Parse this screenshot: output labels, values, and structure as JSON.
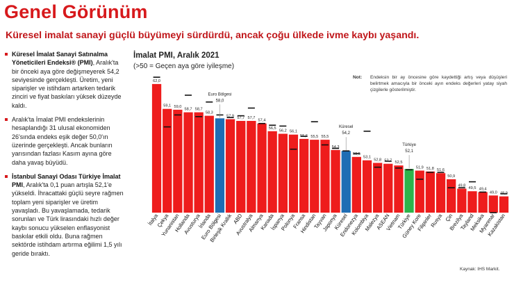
{
  "page": {
    "title": "Genel Görünüm",
    "subtitle": "Küresel imalat sanayi güçlü büyümeyi sürdürdü, ancak çoğu ülkede ivme kaybı yaşandı."
  },
  "bullets": [
    {
      "bold": "Küresel İmalat Sanayi Satınalma Yöneticileri Endeksi® (PMI)",
      "text": ", Aralık'ta bir önceki aya göre değişmeyerek 54,2 seviyesinde gerçekleşti. Üretim, yeni siparişler ve istihdam artarken tedarik zinciri ve fiyat baskıları yüksek düzeyde kaldı."
    },
    {
      "bold": "",
      "text": "Aralık'ta İmalat PMI endekslerinin hesaplandığı 31 ulusal ekonomiden 26'sında endeks eşik değer 50,0'ın üzerinde gerçekleşti. Ancak bunların yarısından fazlası Kasım ayına göre daha yavaş büyüdü."
    },
    {
      "bold": "İstanbul Sanayi Odası Türkiye İmalat PMI",
      "text": ", Aralık'ta 0,1 puan artışla 52,1'e yükseldi. İhracattaki güçlü seyre rağmen toplam yeni siparişler ve üretim yavaşladı. Bu yavaşlamada, tedarik sorunları ve Türk lirasındaki hızlı değer kaybı sonucu yükselen enflasyonist baskılar etkili oldu. Buna rağmen sektörde istihdam artırma eğilimi 1,5 yılı geride bıraktı."
    }
  ],
  "chart": {
    "title": "İmalat PMI, Aralık 2021",
    "subtitle": "(>50 = Geçen aya göre iyileşme)",
    "note_label": "Not:",
    "note_text": "Endeksin bir ay öncesine göre kaydettiği artış veya düşüşleri belirtmek amacıyla bir önceki ayın endeks değerleri yatay siyah çizgilerle gösterilmiştir.",
    "source": "Kaynak: IHS Markit."
  },
  "colors": {
    "default": "#ee1c1c",
    "eurozone": "#1f6db4",
    "global": "#1f6db4",
    "turkey": "#2db34a",
    "prev_marker": "#111111",
    "title": "#d7191c"
  },
  "chart_data": {
    "type": "bar",
    "categories": [
      "İtalya",
      "Çekya",
      "Yunanistan",
      "Hollanda",
      "Avusturya",
      "İrlanda",
      "Euro Bölgesi",
      "Birleşik Krallık",
      "ABD",
      "Avustralya",
      "Almanya",
      "Kanada",
      "İspanya",
      "Polonya",
      "Fransa",
      "Hindistan",
      "Tayvan",
      "Japonya",
      "Küresel",
      "Endonezya",
      "Kolombiya",
      "Malezya",
      "ASEAN",
      "Vietnam",
      "Türkiye",
      "Güney Kore",
      "Filipinler",
      "Rusya",
      "Çin",
      "Brezilya",
      "Tayland",
      "Meksika",
      "Myanmar",
      "Kazakistan"
    ],
    "values": [
      62.0,
      59.1,
      59.0,
      58.7,
      58.7,
      58.3,
      58.0,
      57.9,
      57.7,
      57.7,
      57.4,
      56.5,
      56.2,
      56.1,
      55.6,
      55.5,
      55.5,
      54.3,
      54.2,
      53.5,
      53.1,
      52.8,
      52.7,
      52.5,
      52.1,
      51.9,
      51.8,
      51.6,
      50.9,
      49.8,
      49.5,
      49.4,
      49.0,
      48.9
    ],
    "value_labels": [
      "62,0",
      "59,1",
      "59,0",
      "58,7",
      "58,7",
      "58,3",
      "58,0",
      "57,9",
      "57,7",
      "57,7",
      "57,4",
      "56,5",
      "56,2",
      "56,1",
      "55,6",
      "55,5",
      "55,5",
      "54,3",
      "54,2",
      "53,5",
      "53,1",
      "52,8",
      "52,7",
      "52,5",
      "52,1",
      "51,9",
      "51,8",
      "51,6",
      "50,9",
      "49,8",
      "49,5",
      "49,4",
      "49,0",
      "48,9"
    ],
    "previous_values": [
      62.8,
      57.0,
      58.4,
      60.7,
      58.2,
      59.9,
      58.4,
      58.1,
      58.3,
      59.2,
      57.4,
      57.2,
      57.1,
      54.4,
      55.9,
      57.6,
      54.9,
      54.5,
      54.2,
      53.9,
      56.5,
      52.3,
      53.0,
      52.2,
      52.0,
      50.9,
      51.7,
      51.7,
      49.9,
      49.9,
      50.6,
      49.4,
      47.0,
      49.2
    ],
    "highlight": {
      "Euro Bölgesi": "eurozone",
      "Küresel": "global",
      "Türkiye": "turkey"
    },
    "callouts": [
      {
        "category": "Euro Bölgesi",
        "label": "Euro Bölgesi",
        "value": "58,0"
      },
      {
        "category": "Küresel",
        "label": "Küresel",
        "value": "54,2"
      },
      {
        "category": "Türkiye",
        "label": "Türkiye",
        "value": "52,1"
      }
    ],
    "ylim": [
      47.0,
      63.0
    ],
    "grid": false,
    "legend": "none"
  }
}
